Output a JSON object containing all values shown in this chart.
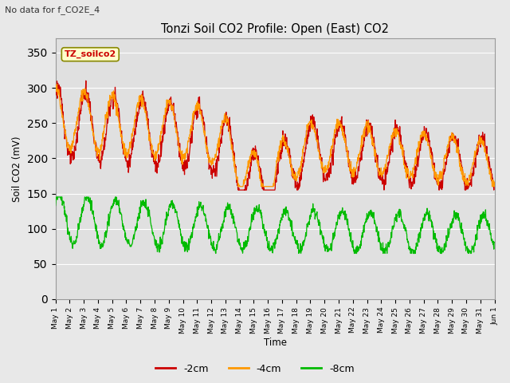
{
  "title": "Tonzi Soil CO2 Profile: Open (East) CO2",
  "subtitle": "No data for f_CO2E_4",
  "ylabel": "Soil CO2 (mV)",
  "xlabel": "Time",
  "legend_label": "TZ_soilco2",
  "series_labels": [
    "-2cm",
    "-4cm",
    "-8cm"
  ],
  "series_colors": [
    "#cc0000",
    "#ff9900",
    "#00bb00"
  ],
  "ylim": [
    0,
    370
  ],
  "yticks": [
    0,
    50,
    100,
    150,
    200,
    250,
    300,
    350
  ],
  "outer_bg": "#e8e8e8",
  "plot_bg": "#e0e0e0",
  "grid_color": "#ffffff",
  "figsize": [
    6.4,
    4.8
  ],
  "dpi": 100
}
